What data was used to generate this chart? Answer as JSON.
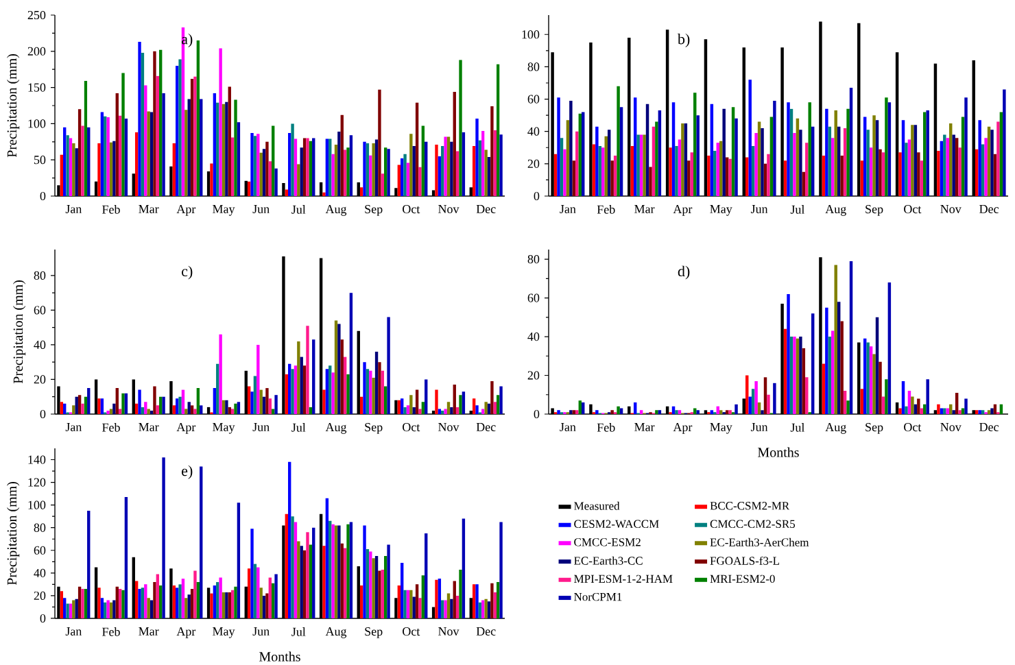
{
  "chart_data": [
    {
      "type": "bar",
      "ylabel": "Precipitation (mm)",
      "annotations": [
        "a)"
      ],
      "categories": [
        "Jan",
        "Feb",
        "Mar",
        "Apr",
        "May",
        "Jun",
        "Jul",
        "Aug",
        "Sep",
        "Oct",
        "Nov",
        "Dec"
      ],
      "ylim": [
        0,
        250
      ],
      "yticks": [
        0,
        50,
        100,
        150,
        200,
        250
      ],
      "series": [
        {
          "color": "#000000",
          "values": [
            15,
            20,
            31,
            41,
            34,
            21,
            18,
            19,
            19,
            11,
            8,
            12
          ]
        },
        {
          "color": "#ff0000",
          "values": [
            57,
            73,
            88,
            73,
            45,
            20,
            9,
            5,
            12,
            43,
            71,
            69
          ]
        },
        {
          "color": "#0000ff",
          "values": [
            95,
            116,
            213,
            180,
            142,
            87,
            87,
            79,
            75,
            52,
            55,
            107
          ]
        },
        {
          "color": "#008080",
          "values": [
            84,
            110,
            198,
            189,
            129,
            83,
            100,
            79,
            73,
            58,
            69,
            77
          ]
        },
        {
          "color": "#ff00ff",
          "values": [
            80,
            109,
            153,
            233,
            204,
            86,
            79,
            58,
            56,
            46,
            82,
            90
          ]
        },
        {
          "color": "#808000",
          "values": [
            73,
            74,
            117,
            119,
            127,
            60,
            44,
            71,
            73,
            86,
            82,
            64
          ]
        },
        {
          "color": "#00007a",
          "values": [
            66,
            76,
            116,
            134,
            130,
            65,
            67,
            89,
            78,
            69,
            75,
            54
          ]
        },
        {
          "color": "#800000",
          "values": [
            120,
            142,
            200,
            162,
            151,
            75,
            80,
            112,
            147,
            129,
            144,
            124
          ]
        },
        {
          "color": "#ff1a8c",
          "values": [
            97,
            111,
            166,
            165,
            81,
            48,
            80,
            64,
            31,
            40,
            62,
            91
          ]
        },
        {
          "color": "#008000",
          "values": [
            159,
            170,
            202,
            215,
            133,
            97,
            76,
            67,
            67,
            97,
            188,
            182
          ]
        },
        {
          "color": "#0000b4",
          "values": [
            95,
            107,
            142,
            134,
            102,
            38,
            80,
            84,
            65,
            75,
            88,
            85
          ]
        }
      ]
    },
    {
      "type": "bar",
      "annotations": [
        "b)"
      ],
      "categories": [
        "Jan",
        "Feb",
        "Mar",
        "Apr",
        "May",
        "Jun",
        "Jul",
        "Aug",
        "Sep",
        "Oct",
        "Nov",
        "Dec"
      ],
      "ylim": [
        0,
        112
      ],
      "yticks": [
        0,
        20,
        40,
        60,
        80,
        100
      ],
      "series": [
        {
          "color": "#000000",
          "values": [
            89,
            95,
            98,
            103,
            97,
            92,
            92,
            108,
            107,
            89,
            82,
            84
          ]
        },
        {
          "color": "#ff0000",
          "values": [
            26,
            32,
            31,
            30,
            25,
            24,
            22,
            25,
            22,
            27,
            28,
            29
          ]
        },
        {
          "color": "#0000ff",
          "values": [
            61,
            43,
            61,
            58,
            57,
            72,
            58,
            54,
            49,
            47,
            34,
            47
          ]
        },
        {
          "color": "#008080",
          "values": [
            36,
            31,
            38,
            31,
            28,
            31,
            54,
            43,
            41,
            33,
            38,
            32
          ]
        },
        {
          "color": "#ff00ff",
          "values": [
            29,
            30,
            38,
            35,
            33,
            39,
            39,
            36,
            30,
            35,
            36,
            36
          ]
        },
        {
          "color": "#808000",
          "values": [
            47,
            37,
            38,
            45,
            34,
            46,
            48,
            53,
            50,
            44,
            45,
            43
          ]
        },
        {
          "color": "#00007a",
          "values": [
            59,
            41,
            57,
            45,
            54,
            42,
            41,
            43,
            47,
            44,
            38,
            41
          ]
        },
        {
          "color": "#800000",
          "values": [
            22,
            22,
            18,
            22,
            24,
            20,
            15,
            25,
            29,
            27,
            36,
            26
          ]
        },
        {
          "color": "#ff1a8c",
          "values": [
            40,
            25,
            43,
            27,
            23,
            26,
            33,
            42,
            27,
            22,
            30,
            46
          ]
        },
        {
          "color": "#008000",
          "values": [
            51,
            68,
            46,
            64,
            55,
            49,
            58,
            54,
            61,
            52,
            49,
            52
          ]
        },
        {
          "color": "#0000b4",
          "values": [
            52,
            55,
            53,
            50,
            48,
            59,
            43,
            67,
            58,
            53,
            61,
            66
          ]
        }
      ]
    },
    {
      "type": "bar",
      "ylabel": "Precipitation (mm)",
      "annotations": [
        "c)"
      ],
      "categories": [
        "Jan",
        "Feb",
        "Mar",
        "Apr",
        "May",
        "Jun",
        "Jul",
        "Aug",
        "Sep",
        "Oct",
        "Nov",
        "Dec"
      ],
      "ylim": [
        0,
        95
      ],
      "yticks": [
        0,
        20,
        40,
        60,
        80
      ],
      "series": [
        {
          "color": "#000000",
          "values": [
            16,
            20,
            20,
            19,
            4,
            25,
            91,
            90,
            48,
            8,
            2,
            2
          ]
        },
        {
          "color": "#ff0000",
          "values": [
            7,
            9,
            6,
            5,
            1,
            16,
            23,
            14,
            10,
            8,
            14,
            9
          ]
        },
        {
          "color": "#0000ff",
          "values": [
            6,
            9,
            14,
            9,
            15,
            13,
            29,
            26,
            30,
            9,
            3,
            5
          ]
        },
        {
          "color": "#008080",
          "values": [
            1,
            1,
            4,
            10,
            29,
            22,
            26,
            28,
            26,
            4,
            2,
            1
          ]
        },
        {
          "color": "#ff00ff",
          "values": [
            1,
            2,
            7,
            14,
            46,
            40,
            28,
            24,
            25,
            5,
            3,
            3
          ]
        },
        {
          "color": "#808000",
          "values": [
            5,
            3,
            3,
            3,
            8,
            14,
            42,
            54,
            21,
            11,
            7,
            7
          ]
        },
        {
          "color": "#00007a",
          "values": [
            10,
            6,
            2,
            7,
            8,
            10,
            33,
            52,
            36,
            4,
            4,
            6
          ]
        },
        {
          "color": "#800000",
          "values": [
            11,
            15,
            16,
            5,
            4,
            15,
            28,
            43,
            30,
            14,
            17,
            19
          ]
        },
        {
          "color": "#ff1a8c",
          "values": [
            6,
            3,
            5,
            3,
            3,
            9,
            51,
            33,
            25,
            3,
            4,
            7
          ]
        },
        {
          "color": "#008000",
          "values": [
            10,
            12,
            10,
            15,
            6,
            3,
            4,
            23,
            16,
            7,
            11,
            11
          ]
        },
        {
          "color": "#0000b4",
          "values": [
            15,
            12,
            10,
            5,
            7,
            11,
            43,
            70,
            56,
            20,
            13,
            16
          ]
        }
      ]
    },
    {
      "type": "bar",
      "xlabel": "Months",
      "annotations": [
        "d)"
      ],
      "categories": [
        "Jan",
        "Feb",
        "Mar",
        "Apr",
        "May",
        "Jun",
        "Jul",
        "Aug",
        "Sep",
        "Oct",
        "Nov",
        "Dec"
      ],
      "ylim": [
        0,
        85
      ],
      "yticks": [
        0,
        20,
        40,
        60,
        80
      ],
      "series": [
        {
          "color": "#000000",
          "values": [
            3,
            5,
            4,
            4,
            2,
            8,
            57,
            81,
            37,
            6,
            2,
            2
          ]
        },
        {
          "color": "#ff0000",
          "values": [
            1,
            1,
            0.5,
            1,
            1,
            20,
            44,
            26,
            13,
            3,
            5,
            2
          ]
        },
        {
          "color": "#0000ff",
          "values": [
            2,
            2,
            6,
            4,
            2,
            9,
            62,
            55,
            39,
            17,
            3,
            2
          ]
        },
        {
          "color": "#008080",
          "values": [
            1,
            0.5,
            0.5,
            2,
            1,
            13,
            40,
            40,
            37,
            4,
            3,
            2
          ]
        },
        {
          "color": "#ff00ff",
          "values": [
            1,
            0.5,
            2,
            2,
            4,
            17,
            40,
            43,
            35,
            12,
            3,
            1
          ]
        },
        {
          "color": "#808000",
          "values": [
            1,
            0.5,
            0.5,
            0.5,
            2,
            6,
            39,
            77,
            31,
            9,
            5,
            2
          ]
        },
        {
          "color": "#00007a",
          "values": [
            2,
            1,
            0.5,
            0.5,
            1,
            2,
            40,
            58,
            50,
            5,
            2,
            3
          ]
        },
        {
          "color": "#800000",
          "values": [
            2,
            2,
            1,
            0.5,
            2,
            19,
            34,
            48,
            27,
            8,
            11,
            5
          ]
        },
        {
          "color": "#ff1a8c",
          "values": [
            2,
            1,
            0.5,
            1,
            2,
            10,
            19,
            12,
            9,
            3,
            2,
            1
          ]
        },
        {
          "color": "#008000",
          "values": [
            7,
            4,
            2,
            3,
            1,
            0.5,
            1,
            7,
            18,
            5,
            3,
            5
          ]
        },
        {
          "color": "#0000b4",
          "values": [
            6,
            3,
            2,
            2,
            5,
            16,
            52,
            79,
            68,
            18,
            8,
            null
          ]
        }
      ]
    },
    {
      "type": "bar",
      "xlabel": "Months",
      "ylabel": "Precipitation (mm)",
      "annotations": [
        "e)"
      ],
      "legend": "right",
      "categories": [
        "Jan",
        "Feb",
        "Mar",
        "Apr",
        "May",
        "Jun",
        "Jul",
        "Aug",
        "Sep",
        "Oct",
        "Nov",
        "Dec"
      ],
      "ylim": [
        0,
        150
      ],
      "yticks": [
        0,
        20,
        40,
        60,
        80,
        100,
        120,
        140
      ],
      "series": [
        {
          "name": "Measured",
          "color": "#000000",
          "values": [
            28,
            45,
            54,
            44,
            27,
            28,
            82,
            92,
            46,
            18,
            10,
            18
          ]
        },
        {
          "name": "BCC-CSM2-MR",
          "color": "#ff0000",
          "values": [
            24,
            27,
            33,
            29,
            22,
            44,
            92,
            64,
            29,
            29,
            34,
            30
          ]
        },
        {
          "name": "CESM2-WACCM",
          "color": "#0000ff",
          "values": [
            18,
            18,
            26,
            27,
            29,
            79,
            138,
            106,
            82,
            49,
            35,
            30
          ]
        },
        {
          "name": "CMCC-CM2-SR5",
          "color": "#008080",
          "values": [
            13,
            14,
            27,
            30,
            32,
            48,
            90,
            86,
            61,
            25,
            16,
            14
          ]
        },
        {
          "name": "CMCC-ESM2",
          "color": "#ff00ff",
          "values": [
            13,
            16,
            30,
            35,
            36,
            45,
            85,
            83,
            59,
            25,
            16,
            16
          ]
        },
        {
          "name": "EC-Earth3-AerChem",
          "color": "#808000",
          "values": [
            16,
            14,
            18,
            18,
            23,
            27,
            68,
            82,
            53,
            25,
            22,
            17
          ]
        },
        {
          "name": "EC-Earth3-CC",
          "color": "#00007a",
          "values": [
            17,
            16,
            16,
            21,
            23,
            20,
            64,
            82,
            55,
            19,
            17,
            15
          ]
        },
        {
          "name": "FGOALS-f3-L",
          "color": "#800000",
          "values": [
            28,
            28,
            32,
            26,
            23,
            22,
            60,
            66,
            42,
            30,
            33,
            31
          ]
        },
        {
          "name": "MPI-ESM-1-2-HAM",
          "color": "#ff1a8c",
          "values": [
            26,
            26,
            39,
            42,
            25,
            36,
            76,
            62,
            43,
            18,
            20,
            23
          ]
        },
        {
          "name": "MRI-ESM2-0",
          "color": "#008000",
          "values": [
            26,
            25,
            29,
            32,
            28,
            31,
            65,
            83,
            55,
            38,
            43,
            32
          ]
        },
        {
          "name": "NorCPM1",
          "color": "#0000b4",
          "values": [
            95,
            107,
            142,
            134,
            102,
            39,
            80,
            85,
            65,
            75,
            88,
            85
          ]
        }
      ]
    }
  ]
}
